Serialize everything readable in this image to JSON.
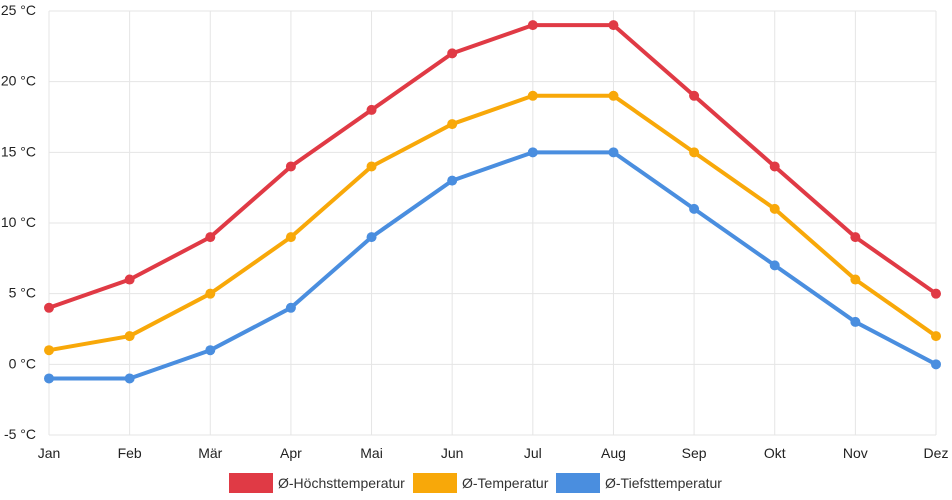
{
  "chart_data": {
    "type": "line",
    "title": "",
    "xlabel": "",
    "ylabel": "",
    "categories": [
      "Jan",
      "Feb",
      "Mär",
      "Apr",
      "Mai",
      "Jun",
      "Jul",
      "Aug",
      "Sep",
      "Okt",
      "Nov",
      "Dez"
    ],
    "ylim": [
      -5,
      25
    ],
    "ytick_values": [
      -5,
      0,
      5,
      10,
      15,
      20,
      25
    ],
    "ytick_labels": [
      "-5 °C",
      "0 °C",
      "5 °C",
      "10 °C",
      "15 °C",
      "20 °C",
      "25 °C"
    ],
    "grid": true,
    "legend_position": "bottom",
    "series": [
      {
        "name": "Ø-Höchsttemperatur",
        "color": "#e03a45",
        "values": [
          4,
          6,
          9,
          14,
          18,
          22,
          24,
          24,
          19,
          14,
          9,
          5
        ]
      },
      {
        "name": "Ø-Temperatur",
        "color": "#f8a809",
        "values": [
          1,
          2,
          5,
          9,
          14,
          17,
          19,
          19,
          15,
          11,
          6,
          2
        ]
      },
      {
        "name": "Ø-Tiefsttemperatur",
        "color": "#4a8edf",
        "values": [
          -1,
          -1,
          1,
          4,
          9,
          13,
          15,
          15,
          11,
          7,
          3,
          0
        ]
      }
    ]
  }
}
